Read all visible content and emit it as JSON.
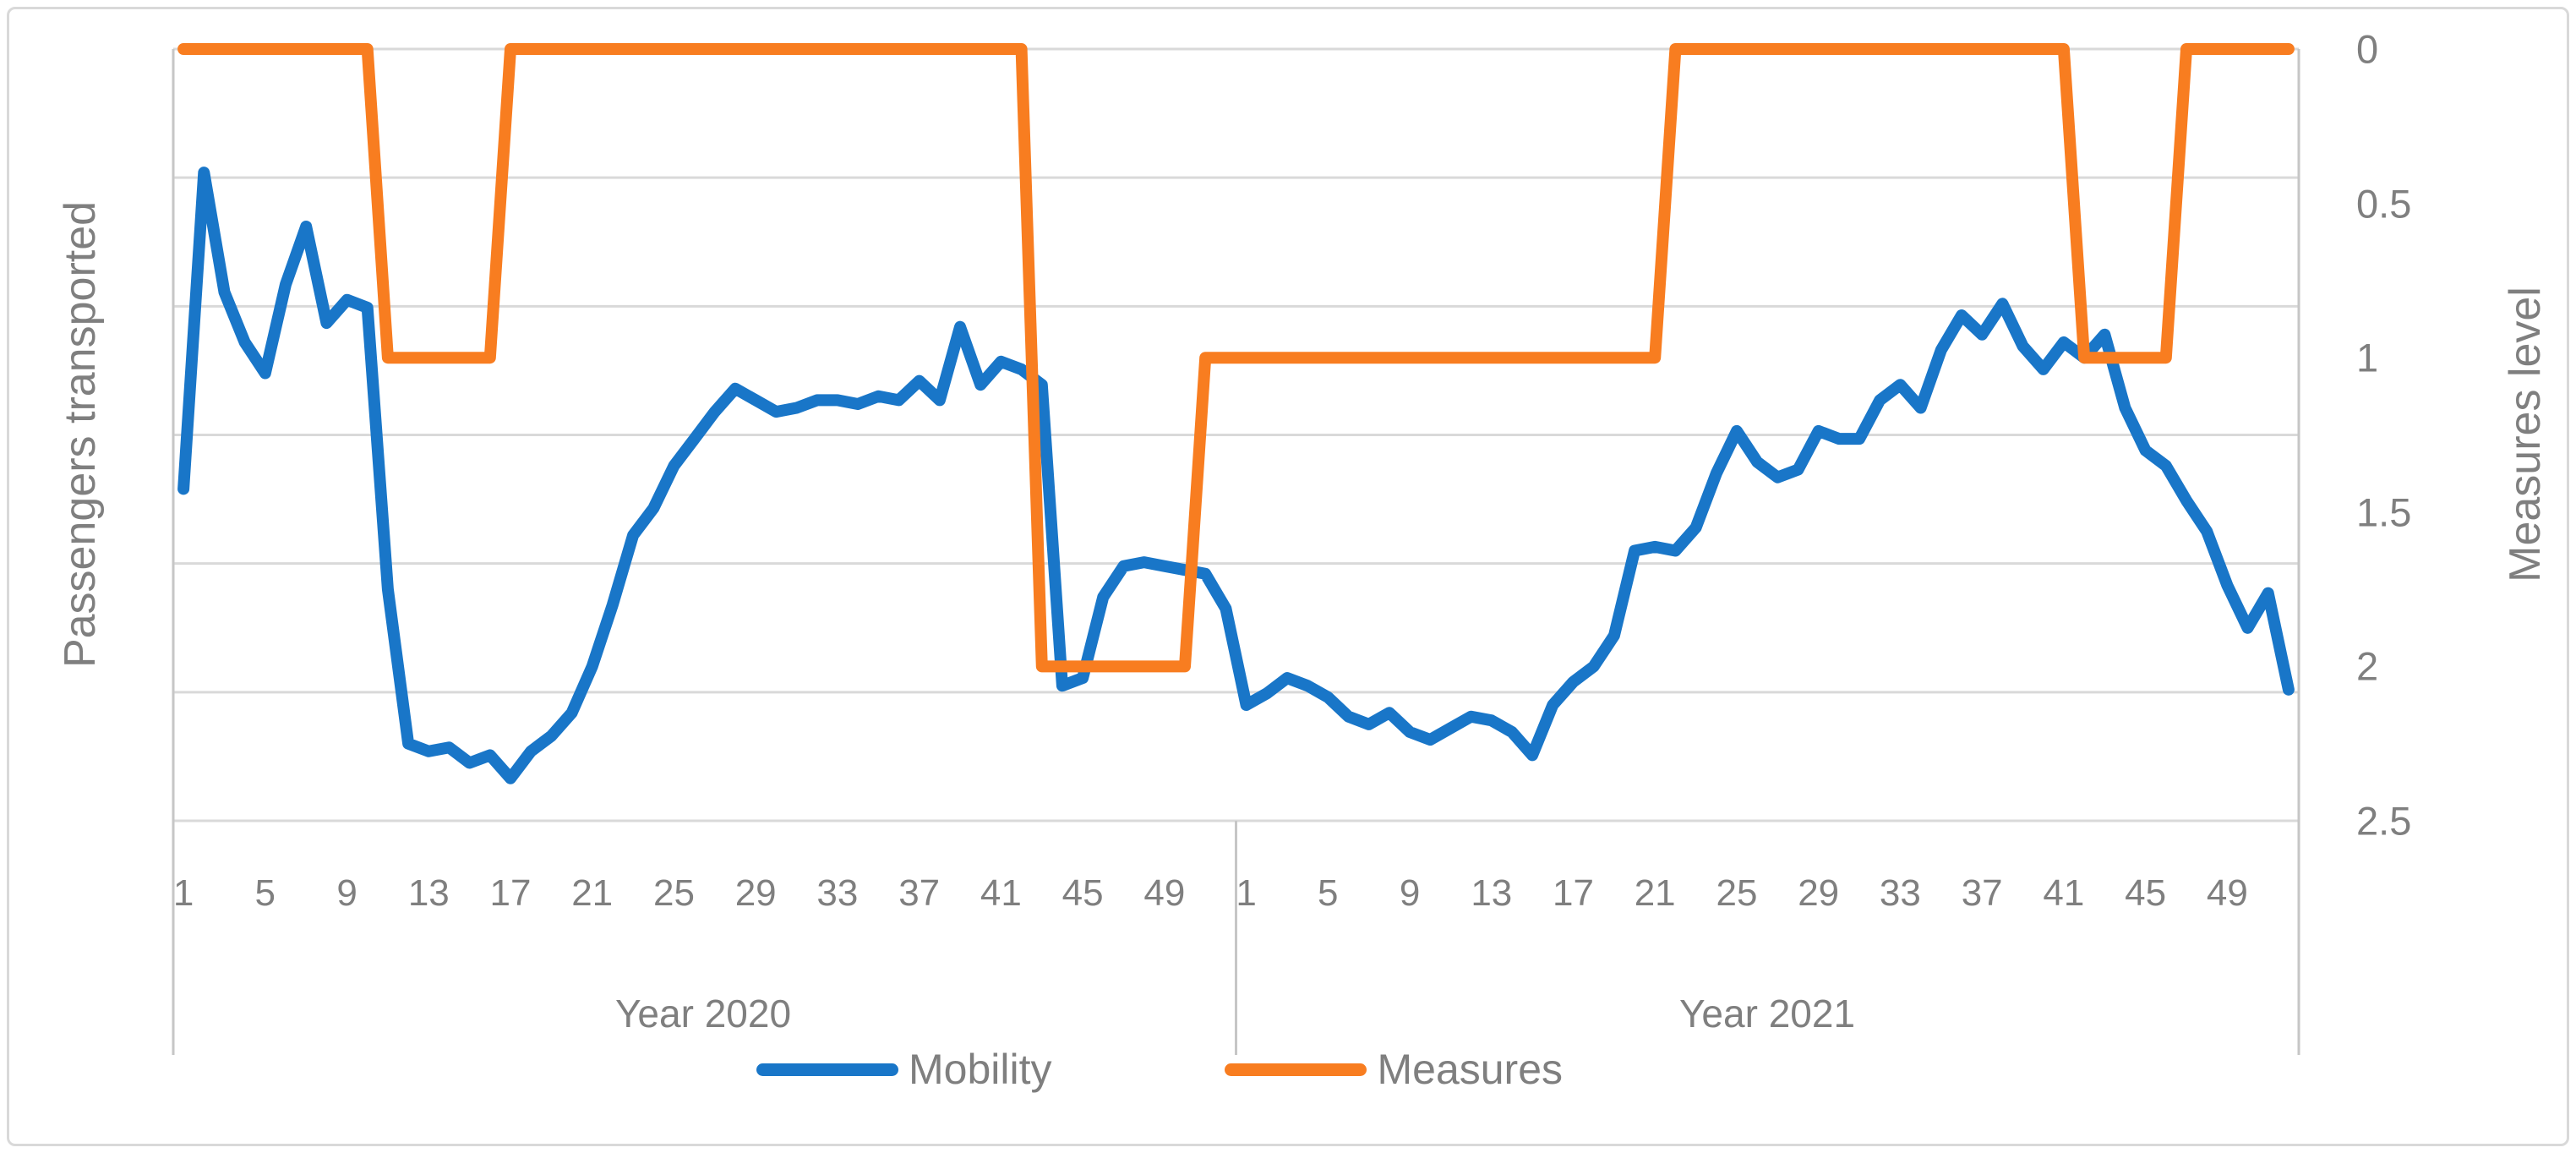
{
  "chart_data": {
    "type": "line",
    "title": "",
    "x_axis": {
      "groups": [
        {
          "label": "Year 2020",
          "weeks": 52
        },
        {
          "label": "Year 2021",
          "weeks": 52
        }
      ],
      "tick_labels": [
        "1",
        "5",
        "9",
        "13",
        "17",
        "21",
        "25",
        "29",
        "33",
        "37",
        "41",
        "45",
        "49"
      ]
    },
    "y_left": {
      "title": "Passengers transported",
      "tick_labels_shown": false,
      "units": "relative (no numeric labels shown)"
    },
    "y_right": {
      "title": "Measures level",
      "ticks": [
        "0",
        "0.5",
        "1",
        "1.5",
        "2",
        "2.5"
      ],
      "min": 0,
      "max": 2.5,
      "reversed": true
    },
    "grid": "horizontal-light-gray",
    "legend": {
      "position": "bottom-center",
      "entries": [
        "Mobility",
        "Measures"
      ]
    },
    "series": [
      {
        "name": "Mobility",
        "axis": "left",
        "color": "#1976c8",
        "units": "percent of plot height (left axis unlabeled)",
        "values": [
          43,
          84,
          68.5,
          62,
          58,
          69.5,
          77,
          64.5,
          67.5,
          66.5,
          30,
          10,
          9,
          9.5,
          7.5,
          8.5,
          5.5,
          9,
          11,
          14,
          20,
          28,
          37,
          40.5,
          46,
          49.5,
          53,
          56,
          54.5,
          53,
          53.5,
          54.5,
          54.5,
          54,
          55,
          54.5,
          57,
          54.5,
          64,
          56.5,
          59.5,
          58.5,
          56.5,
          17.5,
          18.5,
          29,
          33,
          33.5,
          33,
          32.5,
          32,
          27.5,
          15,
          16.5,
          18.5,
          17.5,
          16,
          13.5,
          12.5,
          14,
          11.5,
          10.5,
          12,
          13.5,
          13,
          11.5,
          8.5,
          15,
          18,
          20,
          24,
          35,
          35.5,
          35,
          38,
          45,
          50.5,
          46.5,
          44.5,
          45.5,
          50.5,
          49.5,
          49.5,
          54.5,
          56.5,
          53.5,
          61,
          65.5,
          63,
          67,
          61.5,
          58.5,
          62,
          60,
          63,
          53.5,
          48,
          46,
          41.5,
          37.5,
          30.5,
          25,
          29.5,
          17
        ]
      },
      {
        "name": "Measures",
        "axis": "right",
        "color": "#f87d20",
        "units": "measure level (0, 1 or 2)",
        "values": [
          0,
          0,
          0,
          0,
          0,
          0,
          0,
          0,
          0,
          0,
          1,
          1,
          1,
          1,
          1,
          1,
          0,
          0,
          0,
          0,
          0,
          0,
          0,
          0,
          0,
          0,
          0,
          0,
          0,
          0,
          0,
          0,
          0,
          0,
          0,
          0,
          0,
          0,
          0,
          0,
          0,
          0,
          2,
          2,
          2,
          2,
          2,
          2,
          2,
          2,
          1,
          1,
          1,
          1,
          1,
          1,
          1,
          1,
          1,
          1,
          1,
          1,
          1,
          1,
          1,
          1,
          1,
          1,
          1,
          1,
          1,
          1,
          1,
          0,
          0,
          0,
          0,
          0,
          0,
          0,
          0,
          0,
          0,
          0,
          0,
          0,
          0,
          0,
          0,
          0,
          0,
          0,
          0,
          1,
          1,
          1,
          1,
          1,
          0,
          0,
          0,
          0,
          0,
          0
        ]
      }
    ],
    "layout": {
      "plot_left": 205,
      "plot_top": 58,
      "plot_right": 2720,
      "plot_bottom": 971,
      "gridline_count": 7,
      "divider_bottom": 1248,
      "gridline_color": "#d9d9d9",
      "axis_line_color": "#c6c6c6",
      "line_width": 14
    }
  },
  "legend": {
    "mobility_label": "Mobility",
    "measures_label": "Measures"
  },
  "axes": {
    "left_title": "Passengers transported",
    "right_title": "Measures level",
    "year_2020_label": "Year 2020",
    "year_2021_label": "Year 2021"
  }
}
